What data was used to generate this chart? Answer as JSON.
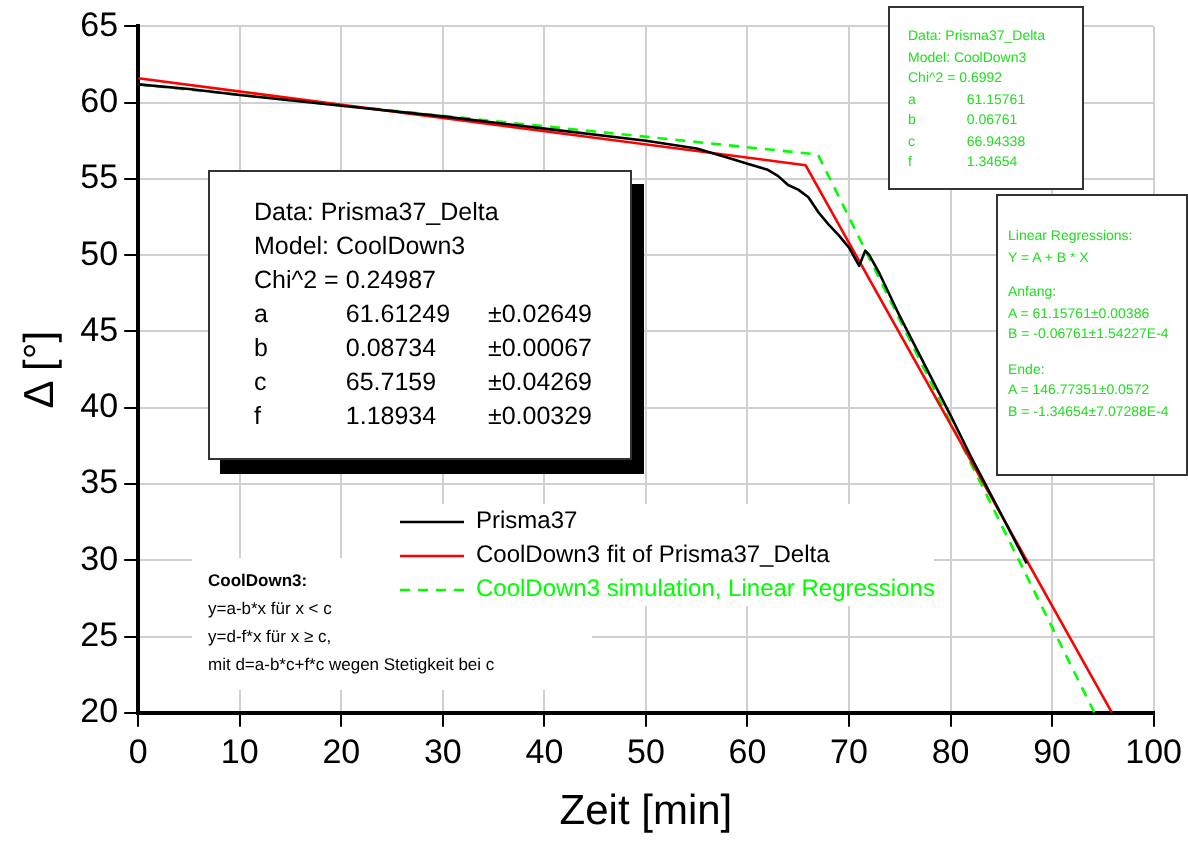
{
  "chart_data": {
    "type": "line",
    "xlabel": "Zeit [min]",
    "ylabel": "Δ [°]",
    "xlim": [
      0,
      100
    ],
    "ylim": [
      20,
      65
    ],
    "xticks": [
      0,
      10,
      20,
      30,
      40,
      50,
      60,
      70,
      80,
      90,
      100
    ],
    "yticks": [
      20,
      25,
      30,
      35,
      40,
      45,
      50,
      55,
      60,
      65
    ],
    "grid": true,
    "legend": "bottom",
    "marker": "none",
    "series": [
      {
        "name": "Prisma37",
        "color": "#000000",
        "line_style": "solid",
        "x": [
          0,
          5,
          10,
          20,
          30,
          40,
          50,
          55,
          58,
          60,
          62,
          63,
          64,
          65,
          66,
          67,
          68,
          69,
          70,
          71,
          71.3,
          71.6,
          72,
          73,
          75,
          77,
          80,
          82,
          85,
          87.5
        ],
        "values": [
          61.2,
          60.9,
          60.5,
          59.8,
          59.1,
          58.3,
          57.5,
          57,
          56.4,
          56,
          55.6,
          55.2,
          54.6,
          54.3,
          53.8,
          52.8,
          52,
          51.3,
          50.5,
          49.3,
          49.8,
          50.3,
          50,
          48.8,
          46,
          43.4,
          39.5,
          36.8,
          33,
          29.8
        ]
      },
      {
        "name": "CoolDown3 fit of Prisma37_Delta",
        "color": "#ff0000",
        "line_style": "solid",
        "x": [
          0,
          65.72,
          95.9
        ],
        "values": [
          61.6,
          55.9,
          20
        ]
      },
      {
        "name": "CoolDown3 simulation, Linear Regressions",
        "color": "#00ff00",
        "line_style": "dashed",
        "x": [
          0,
          66.94,
          94.17
        ],
        "values": [
          61.2,
          56.6,
          20
        ]
      }
    ],
    "annotations": [
      "Data: Prisma37_Delta\nModel: CoolDown3\nChi^2 = 0.24987\na\t61.61249\t±0.02649\nb\t0.08734\t±0.00067\nc\t65.7159\t±0.04269\nf\t1.18934\t±0.00329",
      "Data: Prisma37_Delta\nModel: CoolDown3\nChi^2 = 0.6992\na\t61.15761\nb\t0.06761\nc\t66.94338\nf\t1.34654",
      "Linear Regressions:\nY = A + B * X\n\nAnfang:\nA = 61.15761±0.00386\nB = -0.06761±1.54227E-4\n\nEnde:\nA = 146.77351±0.0572\nB = -1.34654±7.07288E-4",
      "CoolDown3:\ny=a-b*x  für  x < c\ny=d-f*x  für  x ≥ c,\nmit d=a-b*c+f*c wegen Stetigkeit bei c"
    ]
  }
}
